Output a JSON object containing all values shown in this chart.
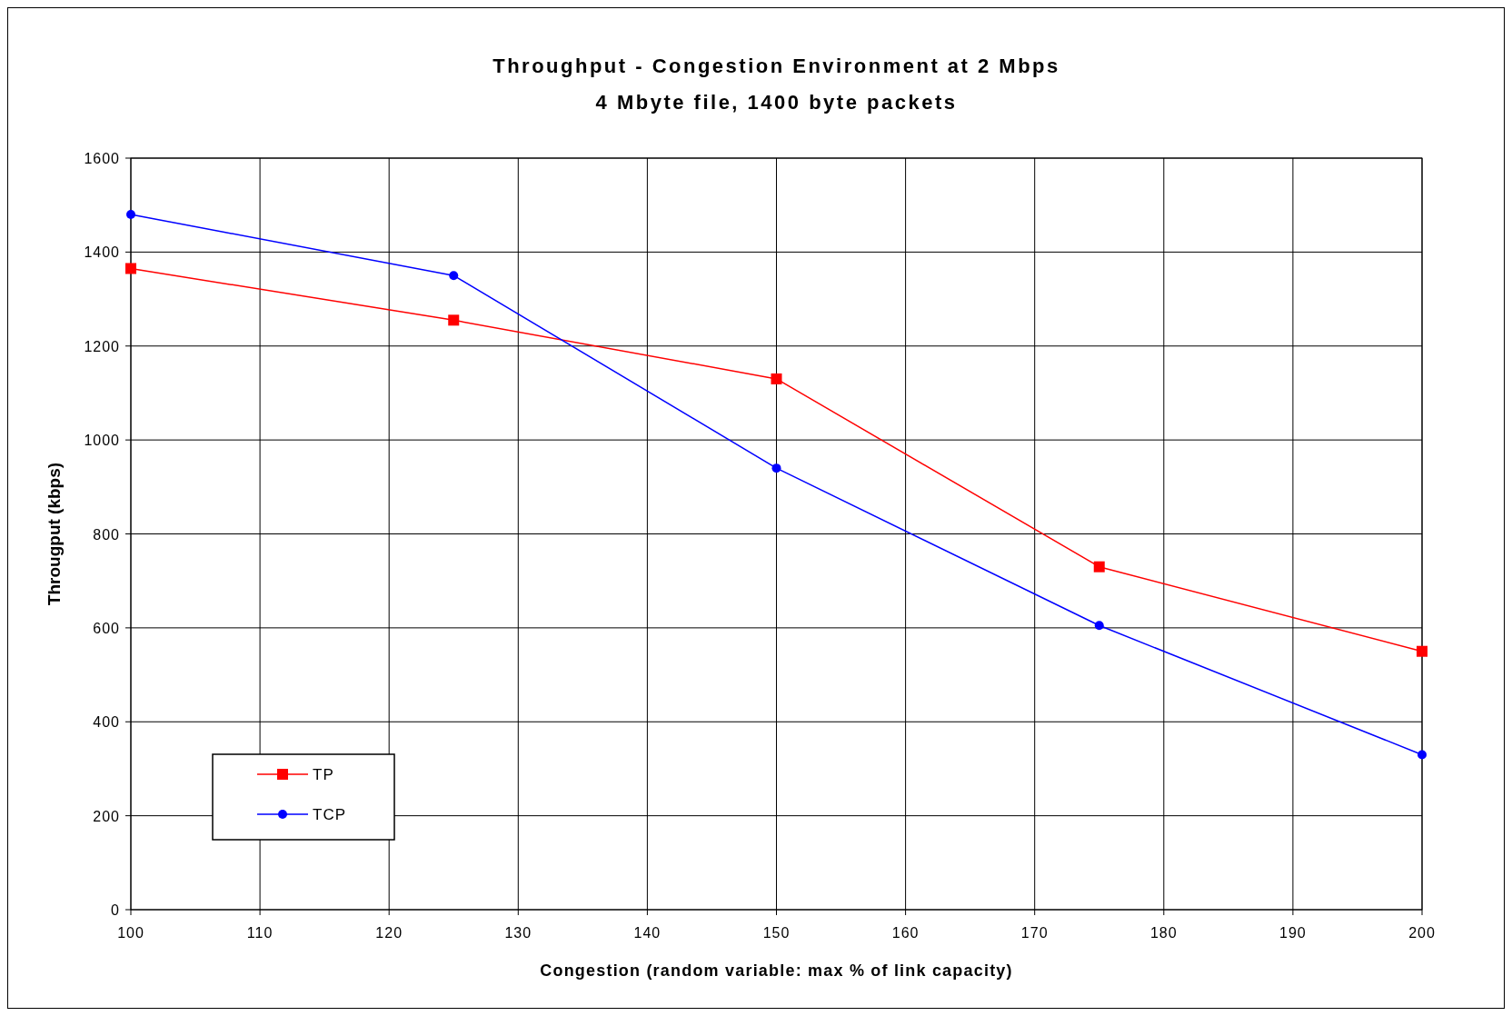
{
  "chart_data": {
    "type": "line",
    "title": "Throughput - Congestion Environment at 2 Mbps",
    "subtitle": "4 Mbyte file, 1400 byte packets",
    "xlabel": "Congestion (random variable: max % of link capacity)",
    "ylabel": "Througput (kbps)",
    "x": [
      100,
      125,
      150,
      175,
      200
    ],
    "series": [
      {
        "name": "TP",
        "color": "#ff0000",
        "marker": "square",
        "values": [
          1365,
          1255,
          1130,
          730,
          550
        ]
      },
      {
        "name": "TCP",
        "color": "#0000ff",
        "marker": "circle",
        "values": [
          1480,
          1350,
          940,
          605,
          330
        ]
      }
    ],
    "xlim": [
      100,
      200
    ],
    "xticks": [
      100,
      110,
      120,
      130,
      140,
      150,
      160,
      170,
      180,
      190,
      200
    ],
    "ylim": [
      0,
      1600
    ],
    "yticks": [
      0,
      200,
      400,
      600,
      800,
      1000,
      1200,
      1400,
      1600
    ],
    "grid": true,
    "legend": "bottom left",
    "line_style": "solid"
  }
}
